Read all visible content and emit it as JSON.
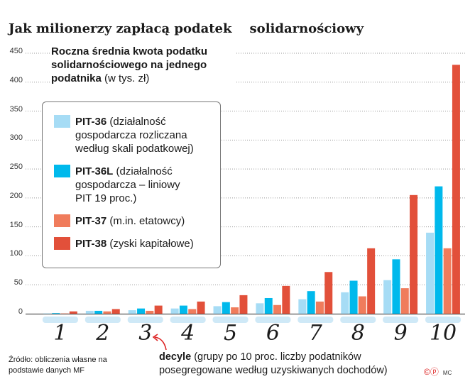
{
  "title": "Jak milionerzy zapłacą podatek    solidarnościowy",
  "chart_data": {
    "type": "bar",
    "title": "Jak milionerzy zapłacą podatek solidarnościowy",
    "subtitle_bold": "Roczna średnia kwota podatku solidarnościowego na jednego podatnika",
    "subtitle_unit": "(w tys. zł)",
    "xlabel_bold": "decyle",
    "xlabel": "(grupy po 10 proc. liczby podatników posegregowane według uzyskiwanych dochodów)",
    "categories": [
      "1",
      "2",
      "3",
      "4",
      "5",
      "6",
      "7",
      "8",
      "9",
      "10"
    ],
    "yticks": [
      "0",
      "50",
      "100",
      "150",
      "200",
      "250",
      "300",
      "350",
      "400",
      "450"
    ],
    "ylim": [
      0,
      450
    ],
    "grid": true,
    "legend_position": "top-left",
    "series": [
      {
        "name": "PIT-36",
        "desc": "(działalność gospodarcza rozliczana według skali podatkowej)",
        "color": "#a6dcf5",
        "values": [
          0.5,
          5,
          6,
          9,
          13,
          18,
          25,
          37,
          58,
          140
        ]
      },
      {
        "name": "PIT-36L",
        "desc": "(działalność gospodarcza – liniowy PIT 19 proc.)",
        "color": "#00b9ec",
        "values": [
          1,
          5,
          9,
          14,
          20,
          27,
          39,
          57,
          94,
          220
        ]
      },
      {
        "name": "PIT-37",
        "desc": "(m.in. etatowcy)",
        "color": "#f07c5c",
        "values": [
          0.5,
          4,
          5,
          8,
          11,
          15,
          21,
          30,
          44,
          113
        ]
      },
      {
        "name": "PIT-38",
        "desc": "(zyski kapitałowe)",
        "color": "#e2503a",
        "values": [
          4,
          8,
          14,
          21,
          32,
          48,
          72,
          113,
          205,
          430
        ]
      }
    ]
  },
  "source": "Źródło: obliczenia własne na podstawie danych MF",
  "credit": "MC",
  "credit_icon": "copyright-icon"
}
